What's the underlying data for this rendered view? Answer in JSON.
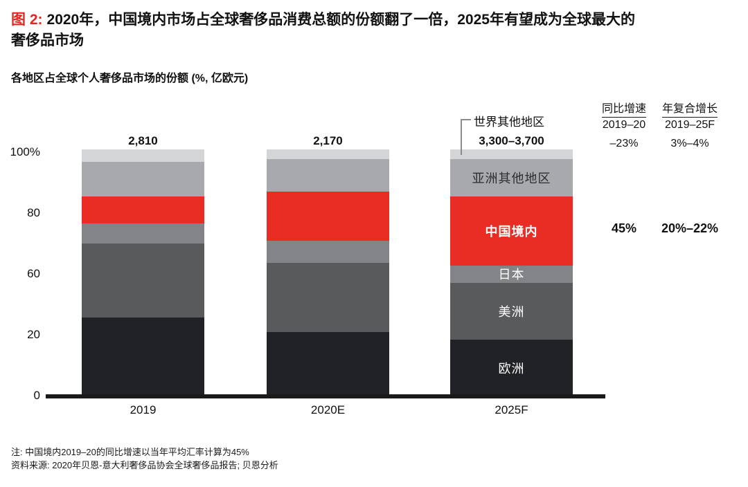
{
  "figure": {
    "tag": "图 2:",
    "title_line1": "2020年，中国境内市场占全球奢侈品消费总额的份额翻了一倍，2025年有望成为全球最大的",
    "title_line2": "奢侈品市场",
    "subtitle": "各地区占全球个人奢侈品市场的份额 (%, 亿欧元)"
  },
  "chart_data": {
    "type": "bar",
    "stacked": true,
    "categories": [
      "2019",
      "2020E",
      "2025F"
    ],
    "totals": [
      "2,810",
      "2,170",
      "3,300–3,700"
    ],
    "yticks": [
      "100%",
      "80",
      "60",
      "20",
      "0"
    ],
    "ylim": [
      0,
      100
    ],
    "series_order": "top-to-bottom",
    "labels_shown_on_bar": "2025F",
    "series": [
      {
        "id": "rest-of-world",
        "name": "世界其他地区",
        "color": "#d4d5d7",
        "values": [
          5,
          4,
          4
        ],
        "show_label": false
      },
      {
        "id": "rest-of-asia",
        "name": "亚洲其他地区",
        "color": "#a7a9ac",
        "values": [
          14,
          13,
          15
        ],
        "show_label": true,
        "label_color": "#2b2c2e",
        "label_bold": false
      },
      {
        "id": "china-mainland",
        "name": "中国境内",
        "color": "#ea2d24",
        "values": [
          11,
          20,
          28
        ],
        "show_label": true,
        "label_color": "#ffffff",
        "label_bold": true
      },
      {
        "id": "japan",
        "name": "日本",
        "color": "#828487",
        "values": [
          8,
          9,
          7
        ],
        "show_label": true,
        "label_color": "#ffffff",
        "label_bold": false
      },
      {
        "id": "americas",
        "name": "美洲",
        "color": "#595a5c",
        "values": [
          30,
          28,
          23
        ],
        "show_label": true,
        "label_color": "#ffffff",
        "label_bold": false
      },
      {
        "id": "europe",
        "name": "欧洲",
        "color": "#212225",
        "values": [
          32,
          26,
          23
        ],
        "show_label": true,
        "label_color": "#ffffff",
        "label_bold": false
      }
    ]
  },
  "stats": {
    "columns": [
      {
        "header": "同比增速",
        "period": "2019–20",
        "total_value": "–23%",
        "china_value": "45%"
      },
      {
        "header": "年复合增长",
        "period": "2019–25F",
        "total_value": "3%–4%",
        "china_value": "20%–22%"
      }
    ]
  },
  "notes": [
    "注: 中国境内2019–20的同比增速以当年平均汇率计算为45%",
    "资料来源: 2020年贝恩-意大利奢侈品协会全球奢侈品报告; 贝恩分析"
  ],
  "colors": {
    "accent_red": "#ea2d24",
    "title_red": "#e6251f",
    "ink": "#1a1a1a"
  }
}
